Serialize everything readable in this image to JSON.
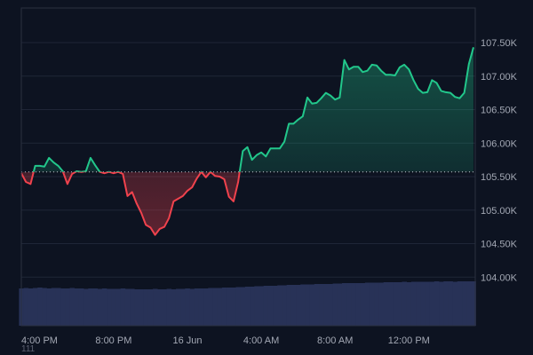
{
  "chart_data": {
    "type": "area",
    "title": "",
    "xlabel": "",
    "ylabel": "",
    "baseline": 105570,
    "ylim": [
      103500,
      108000
    ],
    "y_ticks": [
      {
        "value": 107500,
        "label": "107.50K"
      },
      {
        "value": 107000,
        "label": "107.00K"
      },
      {
        "value": 106500,
        "label": "106.50K"
      },
      {
        "value": 106000,
        "label": "106.00K"
      },
      {
        "value": 105500,
        "label": "105.50K"
      },
      {
        "value": 105000,
        "label": "105.00K"
      },
      {
        "value": 104500,
        "label": "104.50K"
      },
      {
        "value": 104000,
        "label": "104.00K"
      }
    ],
    "x_ticks": [
      {
        "time": "15 Jun 16:00",
        "label": "4:00 PM"
      },
      {
        "time": "15 Jun 20:00",
        "label": "8:00 PM"
      },
      {
        "time": "16 Jun 00:00",
        "label": "16 Jun"
      },
      {
        "time": "16 Jun 04:00",
        "label": "4:00 AM"
      },
      {
        "time": "16 Jun 08:00",
        "label": "8:00 AM"
      },
      {
        "time": "16 Jun 12:00",
        "label": "12:00 PM"
      }
    ],
    "x_start": "15 Jun 15:00",
    "interval_minutes": 15,
    "grid": true,
    "colors": {
      "up": "#22c78b",
      "down": "#f0424d",
      "volume": "#283257",
      "background": "#0d1321",
      "grid": "#1f2637"
    },
    "price": [
      105550,
      105420,
      105390,
      105660,
      105660,
      105650,
      105780,
      105710,
      105660,
      105580,
      105390,
      105540,
      105580,
      105570,
      105580,
      105780,
      105670,
      105570,
      105550,
      105570,
      105550,
      105570,
      105540,
      105210,
      105270,
      105100,
      104960,
      104780,
      104740,
      104630,
      104720,
      104750,
      104880,
      105130,
      105170,
      105210,
      105290,
      105340,
      105470,
      105570,
      105490,
      105570,
      105510,
      105500,
      105460,
      105200,
      105130,
      105420,
      105880,
      105940,
      105750,
      105820,
      105860,
      105800,
      105920,
      105920,
      105920,
      106020,
      106290,
      106290,
      106350,
      106400,
      106680,
      106590,
      106600,
      106670,
      106750,
      106710,
      106650,
      106680,
      107240,
      107100,
      107140,
      107140,
      107060,
      107080,
      107170,
      107160,
      107080,
      107020,
      107020,
      107010,
      107130,
      107170,
      107100,
      106940,
      106810,
      106750,
      106760,
      106940,
      106900,
      106780,
      106760,
      106750,
      106690,
      106670,
      106750,
      107180,
      107430
    ],
    "volume_level": [
      0.84,
      0.85,
      0.84,
      0.85,
      0.86,
      0.85,
      0.84,
      0.85,
      0.85,
      0.84,
      0.84,
      0.85,
      0.84,
      0.84,
      0.83,
      0.84,
      0.84,
      0.83,
      0.84,
      0.83,
      0.83,
      0.83,
      0.84,
      0.83,
      0.83,
      0.82,
      0.82,
      0.82,
      0.82,
      0.83,
      0.82,
      0.82,
      0.83,
      0.82,
      0.83,
      0.83,
      0.84,
      0.83,
      0.84,
      0.84,
      0.84,
      0.85,
      0.85,
      0.85,
      0.86,
      0.86,
      0.86,
      0.87,
      0.87,
      0.88,
      0.88,
      0.89,
      0.89,
      0.9,
      0.9,
      0.9,
      0.91,
      0.91,
      0.92,
      0.92,
      0.92,
      0.93,
      0.93,
      0.93,
      0.94,
      0.94,
      0.94,
      0.94,
      0.95,
      0.95,
      0.96,
      0.96,
      0.96,
      0.96,
      0.96,
      0.97,
      0.97,
      0.97,
      0.97,
      0.98,
      0.98,
      0.98,
      0.98,
      0.99,
      0.98,
      0.99,
      0.99,
      0.99,
      0.99,
      0.99,
      1.0,
      0.99,
      1.0,
      1.0,
      0.99,
      1.0,
      1.0,
      1.0,
      1.0
    ]
  },
  "watermark": "111"
}
